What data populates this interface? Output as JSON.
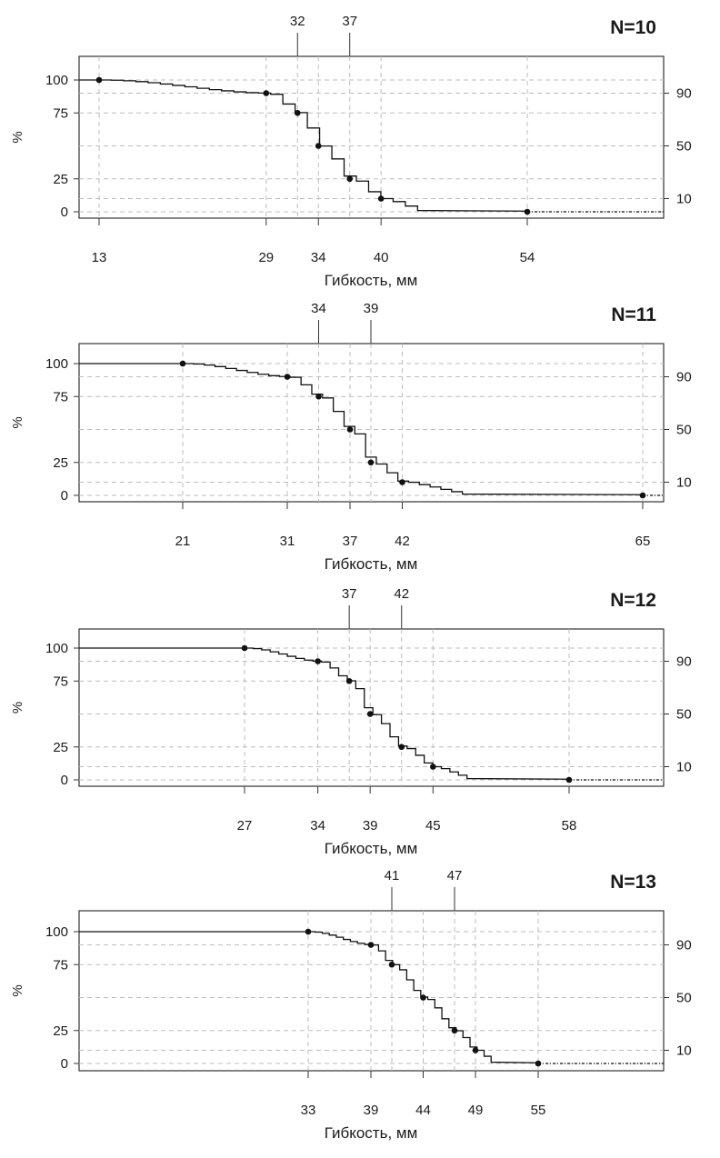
{
  "chart_data": [
    {
      "type": "line",
      "title": "N=10",
      "xlabel": "Гибкость, мм",
      "ylabel": "%",
      "y_ticks": [
        "0",
        "25",
        "75",
        "100"
      ],
      "y_right_ticks": [
        "10",
        "50",
        "90"
      ],
      "x_bottom_ticks": [
        "13",
        "29",
        "34",
        "40",
        "54"
      ],
      "x_top_ticks": [
        "32",
        "37"
      ],
      "grid": true,
      "series": [
        {
          "x": [
            13,
            29,
            32,
            34,
            37,
            40,
            54
          ],
          "y": [
            100,
            90,
            75,
            50,
            25,
            10,
            0
          ]
        }
      ]
    },
    {
      "type": "line",
      "title": "N=11",
      "xlabel": "Гибкость, мм",
      "ylabel": "%",
      "y_ticks": [
        "0",
        "25",
        "75",
        "100"
      ],
      "y_right_ticks": [
        "10",
        "50",
        "90"
      ],
      "x_bottom_ticks": [
        "21",
        "31",
        "37",
        "42",
        "65"
      ],
      "x_top_ticks": [
        "34",
        "39"
      ],
      "grid": true,
      "series": [
        {
          "x": [
            21,
            31,
            34,
            37,
            39,
            42,
            65
          ],
          "y": [
            100,
            90,
            75,
            50,
            25,
            10,
            0
          ]
        }
      ]
    },
    {
      "type": "line",
      "title": "N=12",
      "xlabel": "Гибкость, мм",
      "ylabel": "%",
      "y_ticks": [
        "0",
        "25",
        "75",
        "100"
      ],
      "y_right_ticks": [
        "10",
        "50",
        "90"
      ],
      "x_bottom_ticks": [
        "27",
        "34",
        "39",
        "45",
        "58"
      ],
      "x_top_ticks": [
        "37",
        "42"
      ],
      "grid": true,
      "series": [
        {
          "x": [
            27,
            34,
            37,
            39,
            42,
            45,
            58
          ],
          "y": [
            100,
            90,
            75,
            50,
            25,
            10,
            0
          ]
        }
      ]
    },
    {
      "type": "line",
      "title": "N=13",
      "xlabel": "Гибкость, мм",
      "ylabel": "%",
      "y_ticks": [
        "0",
        "25",
        "75",
        "100"
      ],
      "y_right_ticks": [
        "10",
        "50",
        "90"
      ],
      "x_bottom_ticks": [
        "33",
        "39",
        "44",
        "49",
        "55"
      ],
      "x_top_ticks": [
        "41",
        "47"
      ],
      "grid": true,
      "series": [
        {
          "x": [
            33,
            39,
            41,
            44,
            47,
            49,
            55
          ],
          "y": [
            100,
            90,
            75,
            50,
            25,
            10,
            0
          ]
        }
      ]
    }
  ]
}
